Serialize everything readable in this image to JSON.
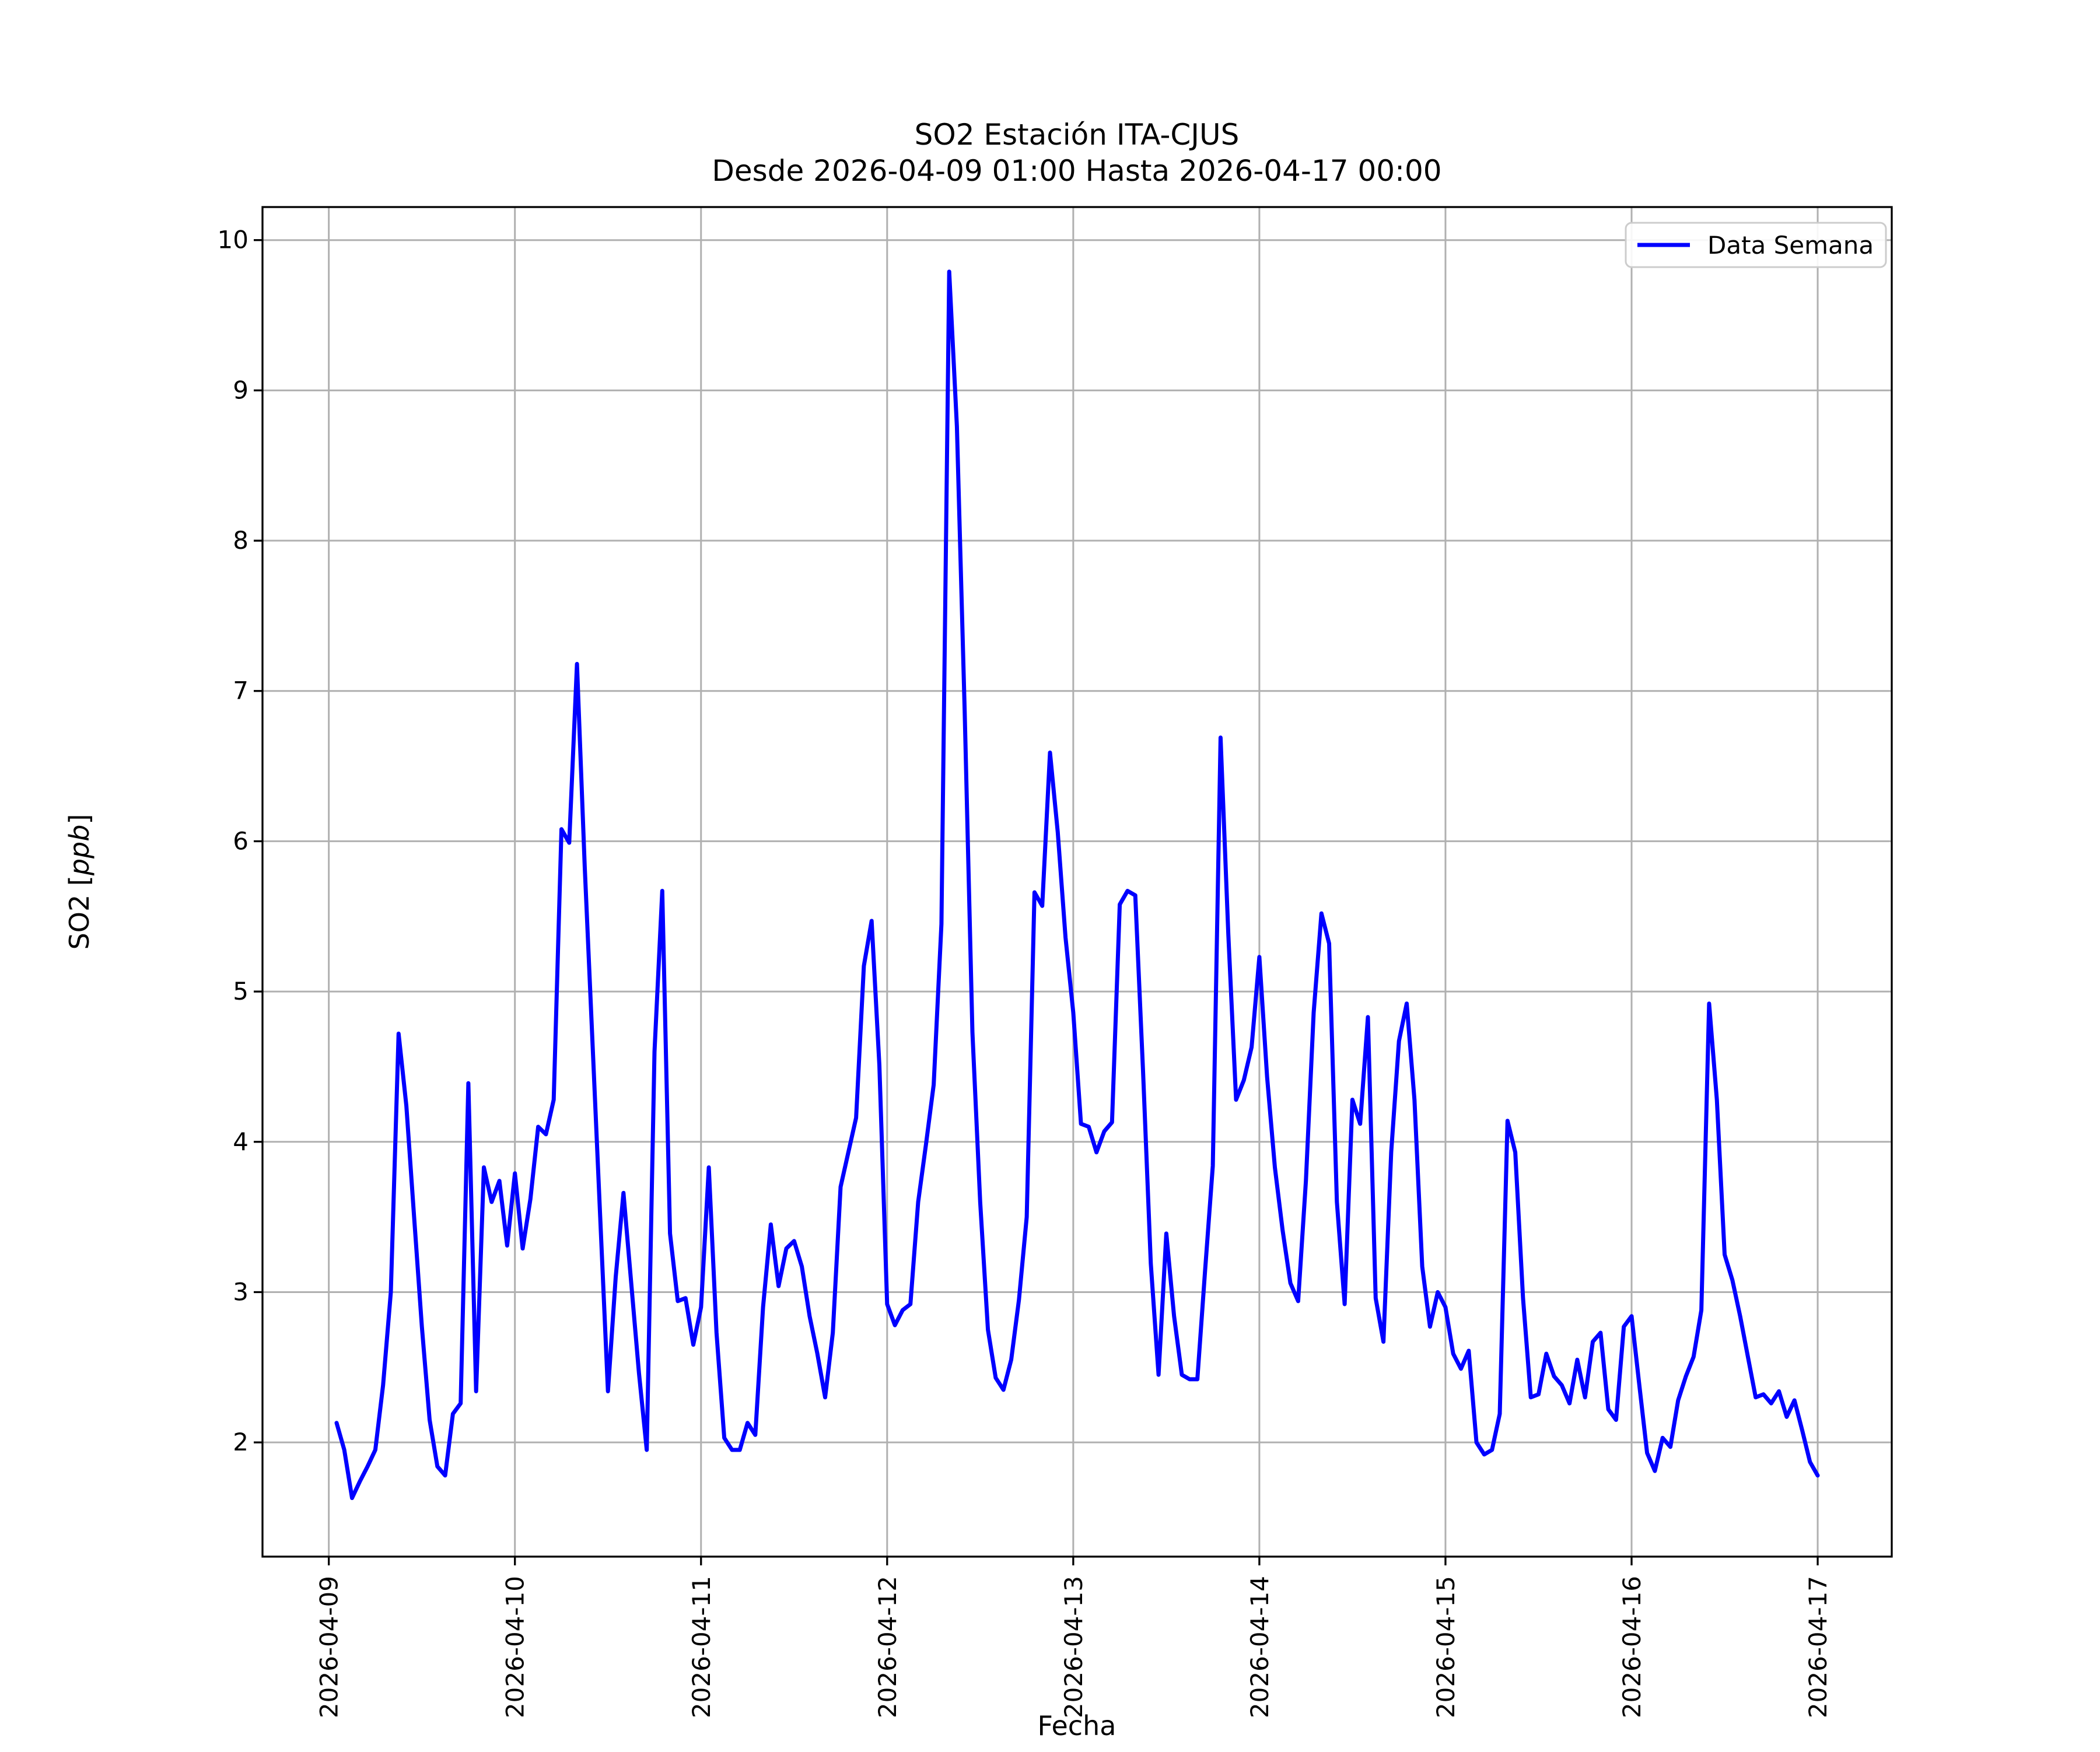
{
  "figure": {
    "title_line1": "SO2 Estación ITA-CJUS",
    "title_line2": "Desde 2026-04-09 01:00 Hasta 2026-04-17 00:00",
    "xlabel": "Fecha",
    "ylabel": "SO2 [ppb]",
    "ylabel_parts": {
      "prefix": "SO2 [",
      "italic": "ppb",
      "suffix": "]"
    },
    "legend_label": "Data Semana"
  },
  "colors": {
    "line": "#0000ff",
    "grid": "#b0b0b0",
    "spine": "#000000",
    "legend_border": "#cccccc",
    "background": "#ffffff"
  },
  "chart_data": {
    "type": "line",
    "title": "SO2 Estación ITA-CJUS",
    "subtitle": "Desde 2026-04-09 01:00 Hasta 2026-04-17 00:00",
    "xlabel": "Fecha",
    "ylabel": "SO2 [ppb]",
    "legend_position": "upper right",
    "grid": true,
    "x_start": "2026-04-09 01:00",
    "x_step_hours": 1,
    "x_tick_labels": [
      "2026-04-09",
      "2026-04-10",
      "2026-04-11",
      "2026-04-12",
      "2026-04-13",
      "2026-04-14",
      "2026-04-15",
      "2026-04-16",
      "2026-04-17"
    ],
    "x_tick_hours": [
      0,
      24,
      48,
      72,
      96,
      120,
      144,
      168,
      192
    ],
    "xlim_hours": [
      -8.55,
      201.55
    ],
    "y_ticks": [
      2,
      3,
      4,
      5,
      6,
      7,
      8,
      9,
      10
    ],
    "ylim": [
      1.24,
      10.22
    ],
    "series": [
      {
        "name": "Data Semana",
        "color": "#0000ff",
        "values": [
          2.13,
          1.95,
          1.63,
          1.74,
          1.84,
          1.95,
          2.38,
          3.0,
          4.72,
          4.24,
          3.5,
          2.77,
          2.15,
          1.84,
          1.78,
          2.19,
          2.26,
          4.39,
          2.34,
          3.83,
          3.6,
          3.74,
          3.31,
          3.79,
          3.29,
          3.62,
          4.1,
          4.05,
          4.28,
          6.08,
          5.99,
          7.18,
          5.83,
          4.67,
          3.5,
          2.34,
          3.1,
          3.66,
          3.06,
          2.46,
          1.95,
          4.6,
          5.67,
          3.39,
          2.94,
          2.96,
          2.65,
          2.9,
          3.83,
          2.73,
          2.03,
          1.95,
          1.95,
          2.13,
          2.05,
          2.9,
          3.45,
          3.04,
          3.29,
          3.34,
          3.17,
          2.84,
          2.59,
          2.3,
          2.73,
          3.7,
          3.93,
          4.16,
          5.17,
          5.47,
          4.51,
          2.92,
          2.78,
          2.88,
          2.92,
          3.6,
          3.98,
          4.38,
          5.45,
          9.79,
          8.76,
          6.87,
          4.73,
          3.6,
          2.75,
          2.43,
          2.35,
          2.55,
          2.95,
          3.5,
          5.66,
          5.57,
          6.59,
          6.06,
          5.36,
          4.86,
          4.12,
          4.1,
          3.93,
          4.07,
          4.13,
          5.58,
          5.67,
          5.64,
          4.47,
          3.19,
          2.45,
          3.39,
          2.84,
          2.45,
          2.42,
          2.42,
          3.14,
          3.84,
          6.69,
          5.38,
          4.28,
          4.41,
          4.63,
          5.23,
          4.43,
          3.83,
          3.41,
          3.06,
          2.94,
          3.74,
          4.86,
          5.52,
          5.32,
          3.6,
          2.92,
          4.28,
          4.12,
          4.83,
          2.96,
          2.67,
          3.93,
          4.67,
          4.92,
          4.28,
          3.17,
          2.77,
          3.0,
          2.9,
          2.59,
          2.49,
          2.61,
          2.0,
          1.92,
          1.95,
          2.19,
          4.14,
          3.93,
          2.96,
          2.3,
          2.32,
          2.59,
          2.44,
          2.38,
          2.26,
          2.55,
          2.3,
          2.67,
          2.73,
          2.22,
          2.15,
          2.77,
          2.84,
          2.38,
          1.93,
          1.81,
          2.03,
          1.97,
          2.28,
          2.44,
          2.57,
          2.88,
          4.92,
          4.28,
          3.25,
          3.08,
          2.84,
          2.57,
          2.3,
          2.32,
          2.26,
          2.34,
          2.17,
          2.28,
          2.08,
          1.87,
          1.78
        ]
      }
    ]
  }
}
